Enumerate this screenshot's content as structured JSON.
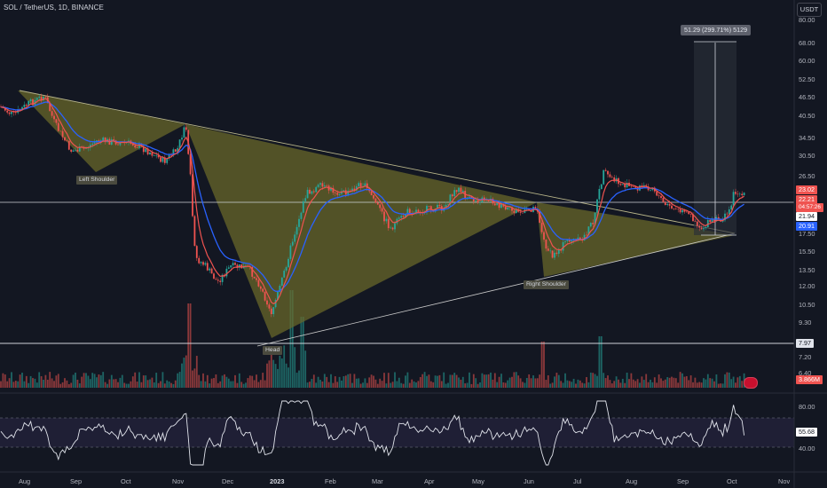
{
  "header": {
    "title": "SOL / TetherUS, 1D, BINANCE",
    "currency": "USDT"
  },
  "price_axis": {
    "ticks": [
      "80.00",
      "68.00",
      "60.00",
      "52.50",
      "46.50",
      "40.50",
      "34.50",
      "30.50",
      "26.50",
      "17.50",
      "15.50",
      "13.50",
      "12.00",
      "10.50",
      "9.30",
      "7.20",
      "6.40"
    ]
  },
  "time_axis": {
    "labels": [
      "Aug",
      "Sep",
      "Oct",
      "Nov",
      "Dec",
      "2023",
      "Feb",
      "Mar",
      "Apr",
      "May",
      "Jun",
      "Jul",
      "Aug",
      "Sep",
      "Oct",
      "Nov"
    ]
  },
  "price_tags": {
    "last_price": "23.02",
    "ma_fast": "22.21",
    "countdown": "04:57:26",
    "horizontal_line": "21.94",
    "ma_slow": "20.91",
    "low_line": "7.97",
    "volume": "3.866M"
  },
  "rsi_axis": {
    "ticks": [
      "80.00",
      "40.00"
    ],
    "value": "55.68"
  },
  "annotations": {
    "left_shoulder": "Left Shoulder",
    "head": "Head",
    "right_shoulder": "Right Shoulder",
    "measure": "51.29 (299.71%) 5129"
  },
  "colors": {
    "background": "#131722",
    "bull": "#26a69a",
    "bear": "#ef5350",
    "ma_fast": "#ef5350",
    "ma_slow": "#2962ff",
    "pattern_fill": "#6b6a2a",
    "last_price_tag": "#ef5350",
    "ma_slow_tag": "#2962ff"
  }
}
